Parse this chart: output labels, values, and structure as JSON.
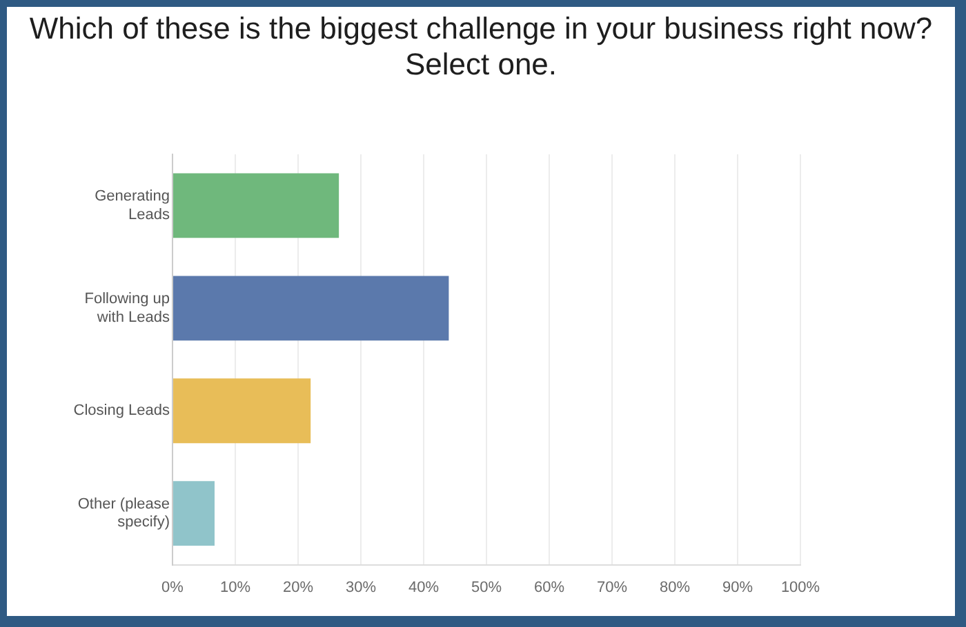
{
  "chart_data": {
    "type": "bar",
    "orientation": "horizontal",
    "title": "Which of these is the biggest challenge in your business right now? Select one.",
    "categories": [
      "Generating Leads",
      "Following up with Leads",
      "Closing Leads",
      "Other (please specify)"
    ],
    "values": [
      26.5,
      44,
      22,
      6.7
    ],
    "colors": [
      "#6fb87c",
      "#5b79ac",
      "#e8bd58",
      "#90c4ca"
    ],
    "xlim": [
      0,
      100
    ],
    "xticks": [
      {
        "value": 0,
        "label": "0%"
      },
      {
        "value": 10,
        "label": "10%"
      },
      {
        "value": 20,
        "label": "20%"
      },
      {
        "value": 30,
        "label": "30%"
      },
      {
        "value": 40,
        "label": "40%"
      },
      {
        "value": 50,
        "label": "50%"
      },
      {
        "value": 60,
        "label": "60%"
      },
      {
        "value": 70,
        "label": "70%"
      },
      {
        "value": 80,
        "label": "80%"
      },
      {
        "value": 90,
        "label": "90%"
      },
      {
        "value": 100,
        "label": "100%"
      }
    ],
    "grid": "x"
  }
}
